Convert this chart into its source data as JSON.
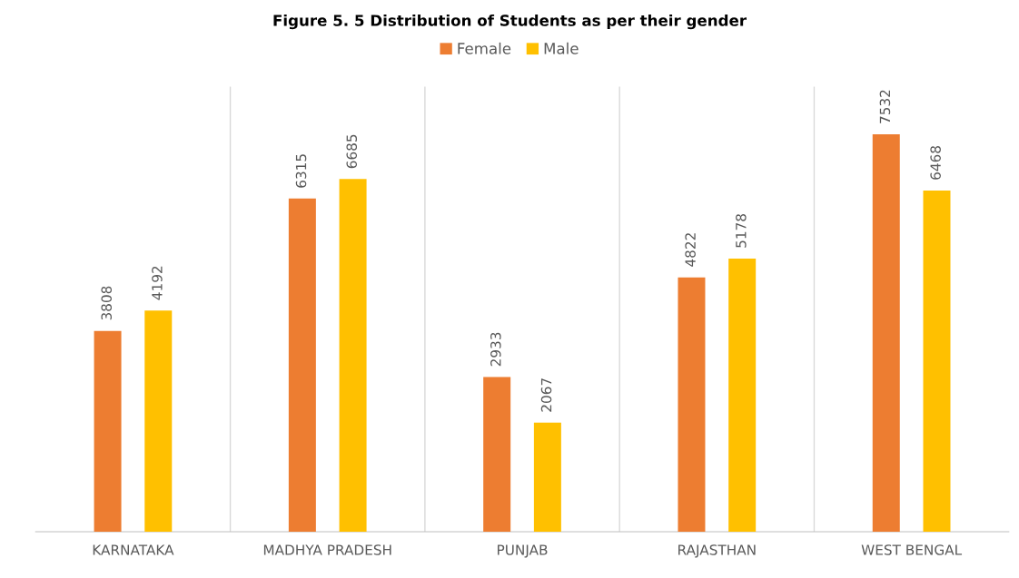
{
  "chart_data": {
    "type": "bar",
    "title": "Figure 5. 5 Distribution of Students as per their gender",
    "categories": [
      "KARNATAKA",
      "MADHYA PRADESH",
      "PUNJAB",
      "RAJASTHAN",
      "WEST BENGAL"
    ],
    "series": [
      {
        "name": "Female",
        "color": "#ed7d31",
        "values": [
          3808,
          6315,
          2933,
          4822,
          7532
        ]
      },
      {
        "name": "Male",
        "color": "#ffc000",
        "values": [
          4192,
          6685,
          2067,
          5178,
          6468
        ]
      }
    ],
    "data_labels": true,
    "grid": "x",
    "legend": "top",
    "tick_labels": "x"
  }
}
